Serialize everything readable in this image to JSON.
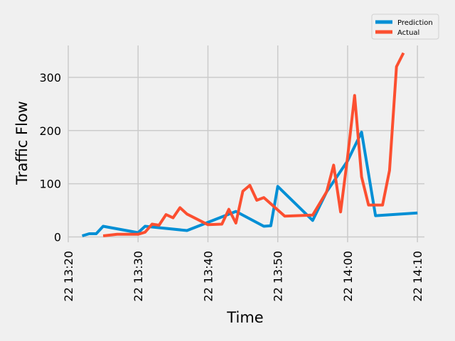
{
  "chart_data": {
    "type": "line",
    "xlabel": "Time",
    "ylabel": "Traffic Flow",
    "x_ticks": [
      "22 13:20",
      "22 13:30",
      "22 13:40",
      "22 13:50",
      "22 14:00",
      "22 14:10"
    ],
    "y_ticks": [
      0,
      100,
      200,
      300
    ],
    "xlim": [
      "13:20",
      "14:11"
    ],
    "ylim": [
      -10,
      360
    ],
    "grid": true,
    "legend_position": "top-right",
    "series": [
      {
        "name": "Prediction",
        "color": "#008fd5",
        "points": [
          [
            "13:22",
            2
          ],
          [
            "13:23",
            6
          ],
          [
            "13:24",
            6
          ],
          [
            "13:25",
            20
          ],
          [
            "13:30",
            8
          ],
          [
            "13:31",
            20
          ],
          [
            "13:37",
            12
          ],
          [
            "13:44",
            48
          ],
          [
            "13:48",
            20
          ],
          [
            "13:49",
            21
          ],
          [
            "13:50",
            95
          ],
          [
            "13:55",
            31
          ],
          [
            "13:57",
            85
          ],
          [
            "14:00",
            143
          ],
          [
            "14:02",
            197
          ],
          [
            "14:04",
            40
          ],
          [
            "14:10",
            45
          ]
        ]
      },
      {
        "name": "Actual",
        "color": "#fc4f30",
        "points": [
          [
            "13:25",
            2
          ],
          [
            "13:27",
            5
          ],
          [
            "13:30",
            5
          ],
          [
            "13:31",
            9
          ],
          [
            "13:32",
            24
          ],
          [
            "13:33",
            22
          ],
          [
            "13:34",
            42
          ],
          [
            "13:35",
            36
          ],
          [
            "13:36",
            55
          ],
          [
            "13:37",
            43
          ],
          [
            "13:40",
            23
          ],
          [
            "13:42",
            24
          ],
          [
            "13:43",
            52
          ],
          [
            "13:44",
            26
          ],
          [
            "13:45",
            86
          ],
          [
            "13:46",
            97
          ],
          [
            "13:47",
            69
          ],
          [
            "13:48",
            74
          ],
          [
            "13:51",
            39
          ],
          [
            "13:55",
            41
          ],
          [
            "13:57",
            85
          ],
          [
            "13:58",
            135
          ],
          [
            "13:59",
            47
          ],
          [
            "14:00",
            150
          ],
          [
            "14:01",
            266
          ],
          [
            "14:02",
            113
          ],
          [
            "14:03",
            60
          ],
          [
            "14:05",
            60
          ],
          [
            "14:06",
            125
          ],
          [
            "14:07",
            320
          ],
          [
            "14:08",
            346
          ]
        ]
      }
    ]
  }
}
